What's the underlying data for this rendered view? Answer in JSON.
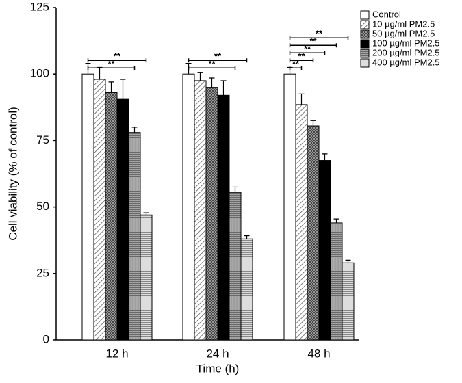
{
  "chart_data": {
    "type": "bar",
    "ylabel": "Cell viability (% of control)",
    "xlabel": "Time (h)",
    "categories": [
      "12 h",
      "24 h",
      "48 h"
    ],
    "series": [
      {
        "name": "Control",
        "color": "#ffffff",
        "values": [
          100,
          100,
          100
        ],
        "errors": [
          4,
          4,
          2.5
        ]
      },
      {
        "name": "10 µg/ml PM2.5",
        "color": "#e6e6e6",
        "values": [
          98,
          97.5,
          88.5
        ],
        "errors": [
          4.5,
          3,
          4
        ]
      },
      {
        "name": "50 µg/ml PM2.5",
        "color": "#6a6a6a",
        "values": [
          93,
          95,
          80.5
        ],
        "errors": [
          4,
          3.5,
          2
        ]
      },
      {
        "name": "100 µg/ml PM2.5",
        "color": "#000000",
        "values": [
          90.5,
          92,
          67.5
        ],
        "errors": [
          7.5,
          5.5,
          2.5
        ]
      },
      {
        "name": "200 µg/ml PM2.5",
        "color": "#9a9a9a",
        "values": [
          78,
          55.5,
          44
        ],
        "errors": [
          2,
          2,
          1.5
        ]
      },
      {
        "name": "400 µg/ml PM2.5",
        "color": "#bdbdbd",
        "values": [
          47,
          38,
          29
        ],
        "errors": [
          0.8,
          1.2,
          1
        ]
      }
    ],
    "annotations": [
      {
        "text": "**",
        "category": "12 h",
        "series": "200 µg/ml PM2.5"
      },
      {
        "text": "**",
        "category": "12 h",
        "series": "400 µg/ml PM2.5"
      },
      {
        "text": "**",
        "category": "24 h",
        "series": "200 µg/ml PM2.5"
      },
      {
        "text": "**",
        "category": "24 h",
        "series": "400 µg/ml PM2.5"
      },
      {
        "text": "**",
        "category": "48 h",
        "series": "10 µg/ml PM2.5"
      },
      {
        "text": "**",
        "category": "48 h",
        "series": "50 µg/ml PM2.5"
      },
      {
        "text": "**",
        "category": "48 h",
        "series": "100 µg/ml PM2.5"
      },
      {
        "text": "**",
        "category": "48 h",
        "series": "200 µg/ml PM2.5"
      },
      {
        "text": "**",
        "category": "48 h",
        "series": "400 µg/ml PM2.5"
      }
    ],
    "ylim": [
      0,
      125
    ],
    "yticks": [
      0,
      25,
      50,
      75,
      100,
      125
    ],
    "grid": false,
    "legend": "top-right"
  }
}
